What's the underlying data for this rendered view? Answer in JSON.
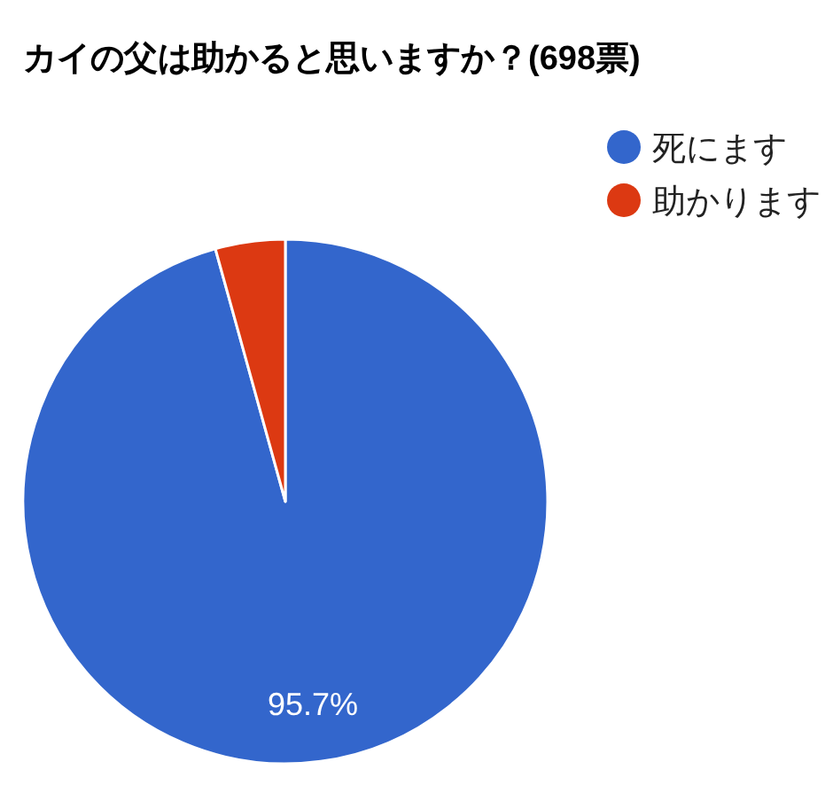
{
  "chart_data": {
    "type": "pie",
    "title": "カイの父は助かると思いますか？(698票)",
    "categories": [
      "死にます",
      "助かります"
    ],
    "values": [
      95.7,
      4.3
    ],
    "colors": [
      "#3366cc",
      "#dc3912"
    ],
    "value_labels": [
      "95.7%",
      null
    ],
    "legend": "top right"
  }
}
